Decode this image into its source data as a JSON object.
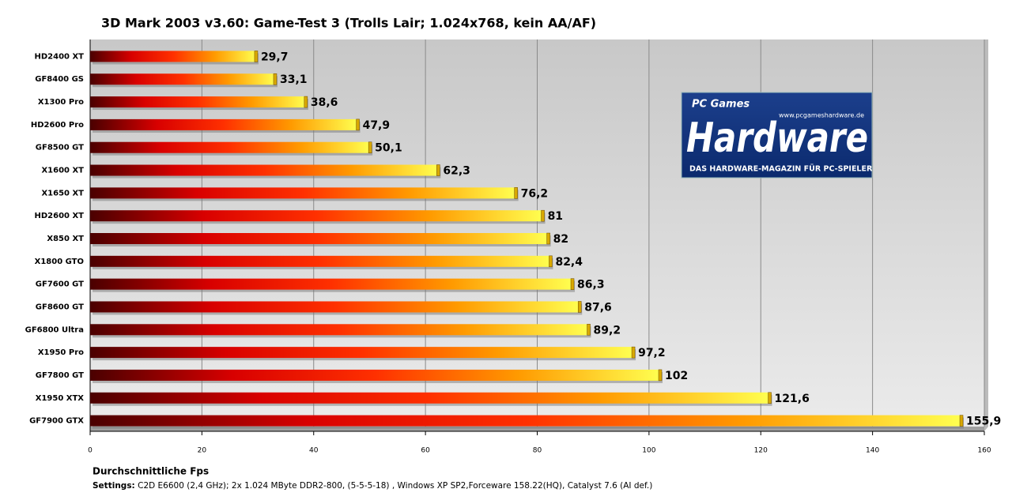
{
  "chart_data": {
    "type": "hbar",
    "title": "3D Mark 2003 v3.60: Game-Test 3 (Trolls Lair; 1.024x768,  kein AA/AF)",
    "x_label": "Durchschnittliche Fps",
    "settings_label": "Settings:",
    "settings_text": "C2D E6600 (2,4 GHz); 2x 1.024 MByte DDR2-800, (5-5-5-18) , Windows XP SP2,Forceware 158.22(HQ), Catalyst 7.6 (AI def.)",
    "categories": [
      "HD2400 XT",
      "GF8400 GS",
      "X1300 Pro",
      "HD2600 Pro",
      "GF8500 GT",
      "X1600 XT",
      "X1650 XT",
      "HD2600 XT",
      "X850 XT",
      "X1800 GTO",
      "GF7600 GT",
      "GF8600 GT",
      "GF6800 Ultra",
      "X1950 Pro",
      "GF7800 GT",
      "X1950 XTX",
      "GF7900 GTX"
    ],
    "values": [
      29.7,
      33.1,
      38.6,
      47.9,
      50.1,
      62.3,
      76.2,
      81,
      82,
      82.4,
      86.3,
      87.6,
      89.2,
      97.2,
      102,
      121.6,
      155.9
    ],
    "value_labels": [
      "29,7",
      "33,1",
      "38,6",
      "47,9",
      "50,1",
      "62,3",
      "76,2",
      "81",
      "82",
      "82,4",
      "86,3",
      "87,6",
      "89,2",
      "97,2",
      "102",
      "121,6",
      "155,9"
    ],
    "gradient": [
      "#4a0000",
      "#d80000",
      "#ff3000",
      "#ff9a00",
      "#ffff50"
    ],
    "xlim": [
      0,
      160
    ],
    "xticks": [
      0,
      20,
      40,
      60,
      80,
      100,
      120,
      140,
      160
    ],
    "grid": true,
    "logo": {
      "brand": "PC Games",
      "name": "Hardware",
      "url": "www.pcgameshardware.de",
      "tagline": "DAS HARDWARE-MAGAZIN FÜR PC-SPIELER"
    }
  }
}
